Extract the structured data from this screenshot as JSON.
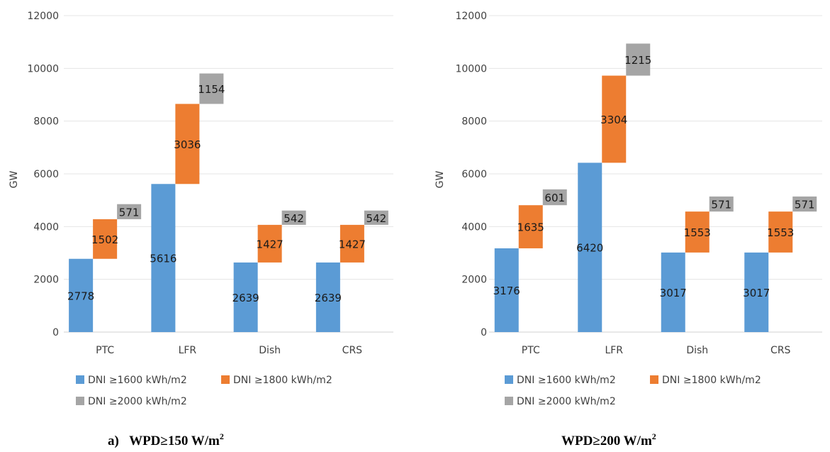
{
  "colors": {
    "dni1600": "#5B9BD5",
    "dni1800": "#ED7D31",
    "dni2000": "#A5A5A5"
  },
  "chart_data": [
    {
      "type": "bar",
      "stacked": "waterfall",
      "caption": {
        "prefix": "a)",
        "text": "WPD≥150 W/m",
        "sup": "2"
      },
      "ylabel": "GW",
      "ylim": [
        0,
        12000
      ],
      "yticks": [
        "0",
        "2000",
        "4000",
        "6000",
        "8000",
        "10000",
        "12000"
      ],
      "categories": [
        "PTC",
        "LFR",
        "Dish",
        "CRS"
      ],
      "series": [
        {
          "name": "DNI ≥1600 kWh/m2",
          "color": "#5B9BD5",
          "values": [
            2778,
            5616,
            2639,
            2639
          ]
        },
        {
          "name": "DNI ≥1800 kWh/m2",
          "color": "#ED7D31",
          "values": [
            1502,
            3036,
            1427,
            1427
          ]
        },
        {
          "name": "DNI ≥2000 kWh/m2",
          "color": "#A5A5A5",
          "values": [
            571,
            1154,
            542,
            542
          ]
        }
      ],
      "legend": "bottom",
      "grid": true
    },
    {
      "type": "bar",
      "stacked": "waterfall",
      "caption": {
        "prefix": "",
        "text": "WPD≥200 W/m",
        "sup": "2"
      },
      "ylabel": "GW",
      "ylim": [
        0,
        12000
      ],
      "yticks": [
        "0",
        "2000",
        "4000",
        "6000",
        "8000",
        "10000",
        "12000"
      ],
      "categories": [
        "PTC",
        "LFR",
        "Dish",
        "CRS"
      ],
      "series": [
        {
          "name": "DNI ≥1600 kWh/m2",
          "color": "#5B9BD5",
          "values": [
            3176,
            6420,
            3017,
            3017
          ]
        },
        {
          "name": "DNI ≥1800 kWh/m2",
          "color": "#ED7D31",
          "values": [
            1635,
            3304,
            1553,
            1553
          ]
        },
        {
          "name": "DNI ≥2000 kWh/m2",
          "color": "#A5A5A5",
          "values": [
            601,
            1215,
            571,
            571
          ]
        }
      ],
      "legend": "bottom",
      "grid": true
    }
  ]
}
